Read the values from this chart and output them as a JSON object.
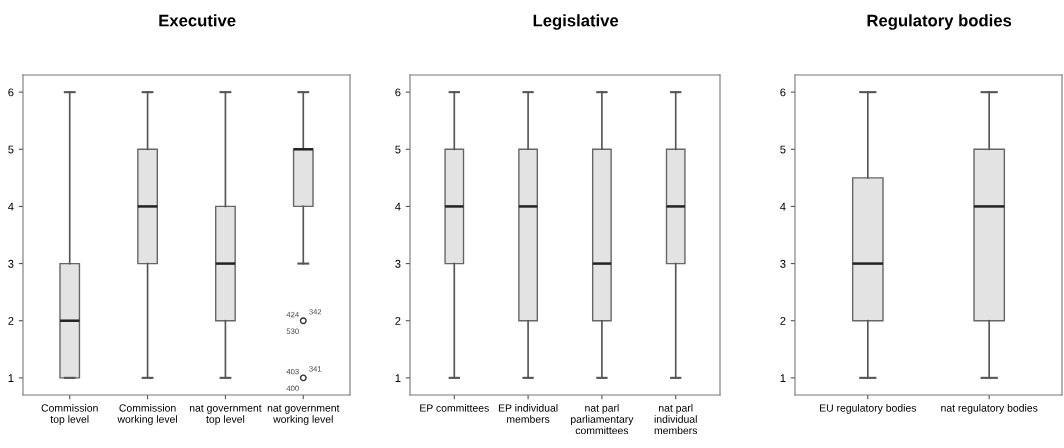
{
  "chart_data": [
    {
      "type": "box",
      "title": "Executive",
      "categories": [
        "Commission\ntop level",
        "Commission\nworking level",
        "nat government\ntop level",
        "nat government\nworking level"
      ],
      "color": "#e3e3e3",
      "ylim": [
        0.7,
        6.3
      ],
      "yticks": [
        1,
        2,
        3,
        4,
        5,
        6
      ],
      "grid": false,
      "boxes": [
        {
          "low": 1,
          "q1": 1,
          "median": 2,
          "q3": 3,
          "high": 6
        },
        {
          "low": 1,
          "q1": 3,
          "median": 4,
          "q3": 5,
          "high": 6
        },
        {
          "low": 1,
          "q1": 2,
          "median": 3,
          "q3": 4,
          "high": 6
        },
        {
          "low": 3,
          "q1": 4,
          "median": 5,
          "q3": 5,
          "high": 6,
          "outliers": [
            2,
            1
          ]
        }
      ],
      "annotations": [
        "424",
        "342",
        "530",
        "403",
        "341",
        "400"
      ]
    },
    {
      "type": "box",
      "title": "Legislative",
      "categories": [
        "EP committees",
        "EP individual\nmembers",
        "nat parl\nparliamentary\ncommittees",
        "nat parl\nindividual\nmembers"
      ],
      "color": "#e3e3e3",
      "ylim": [
        0.7,
        6.3
      ],
      "yticks": [
        1,
        2,
        3,
        4,
        5,
        6
      ],
      "grid": false,
      "boxes": [
        {
          "low": 1,
          "q1": 3,
          "median": 4,
          "q3": 5,
          "high": 6
        },
        {
          "low": 1,
          "q1": 2,
          "median": 4,
          "q3": 5,
          "high": 6
        },
        {
          "low": 1,
          "q1": 2,
          "median": 3,
          "q3": 5,
          "high": 6
        },
        {
          "low": 1,
          "q1": 3,
          "median": 4,
          "q3": 5,
          "high": 6
        }
      ]
    },
    {
      "type": "box",
      "title": "Regulatory bodies",
      "categories": [
        "EU regulatory bodies",
        "nat regulatory bodies"
      ],
      "color": "#e3e3e3",
      "ylim": [
        0.7,
        6.3
      ],
      "yticks": [
        1,
        2,
        3,
        4,
        5,
        6
      ],
      "grid": false,
      "boxes": [
        {
          "low": 1,
          "q1": 2,
          "median": 3,
          "q3": 4.5,
          "high": 6
        },
        {
          "low": 1,
          "q1": 2,
          "median": 4,
          "q3": 5,
          "high": 6
        }
      ]
    }
  ]
}
